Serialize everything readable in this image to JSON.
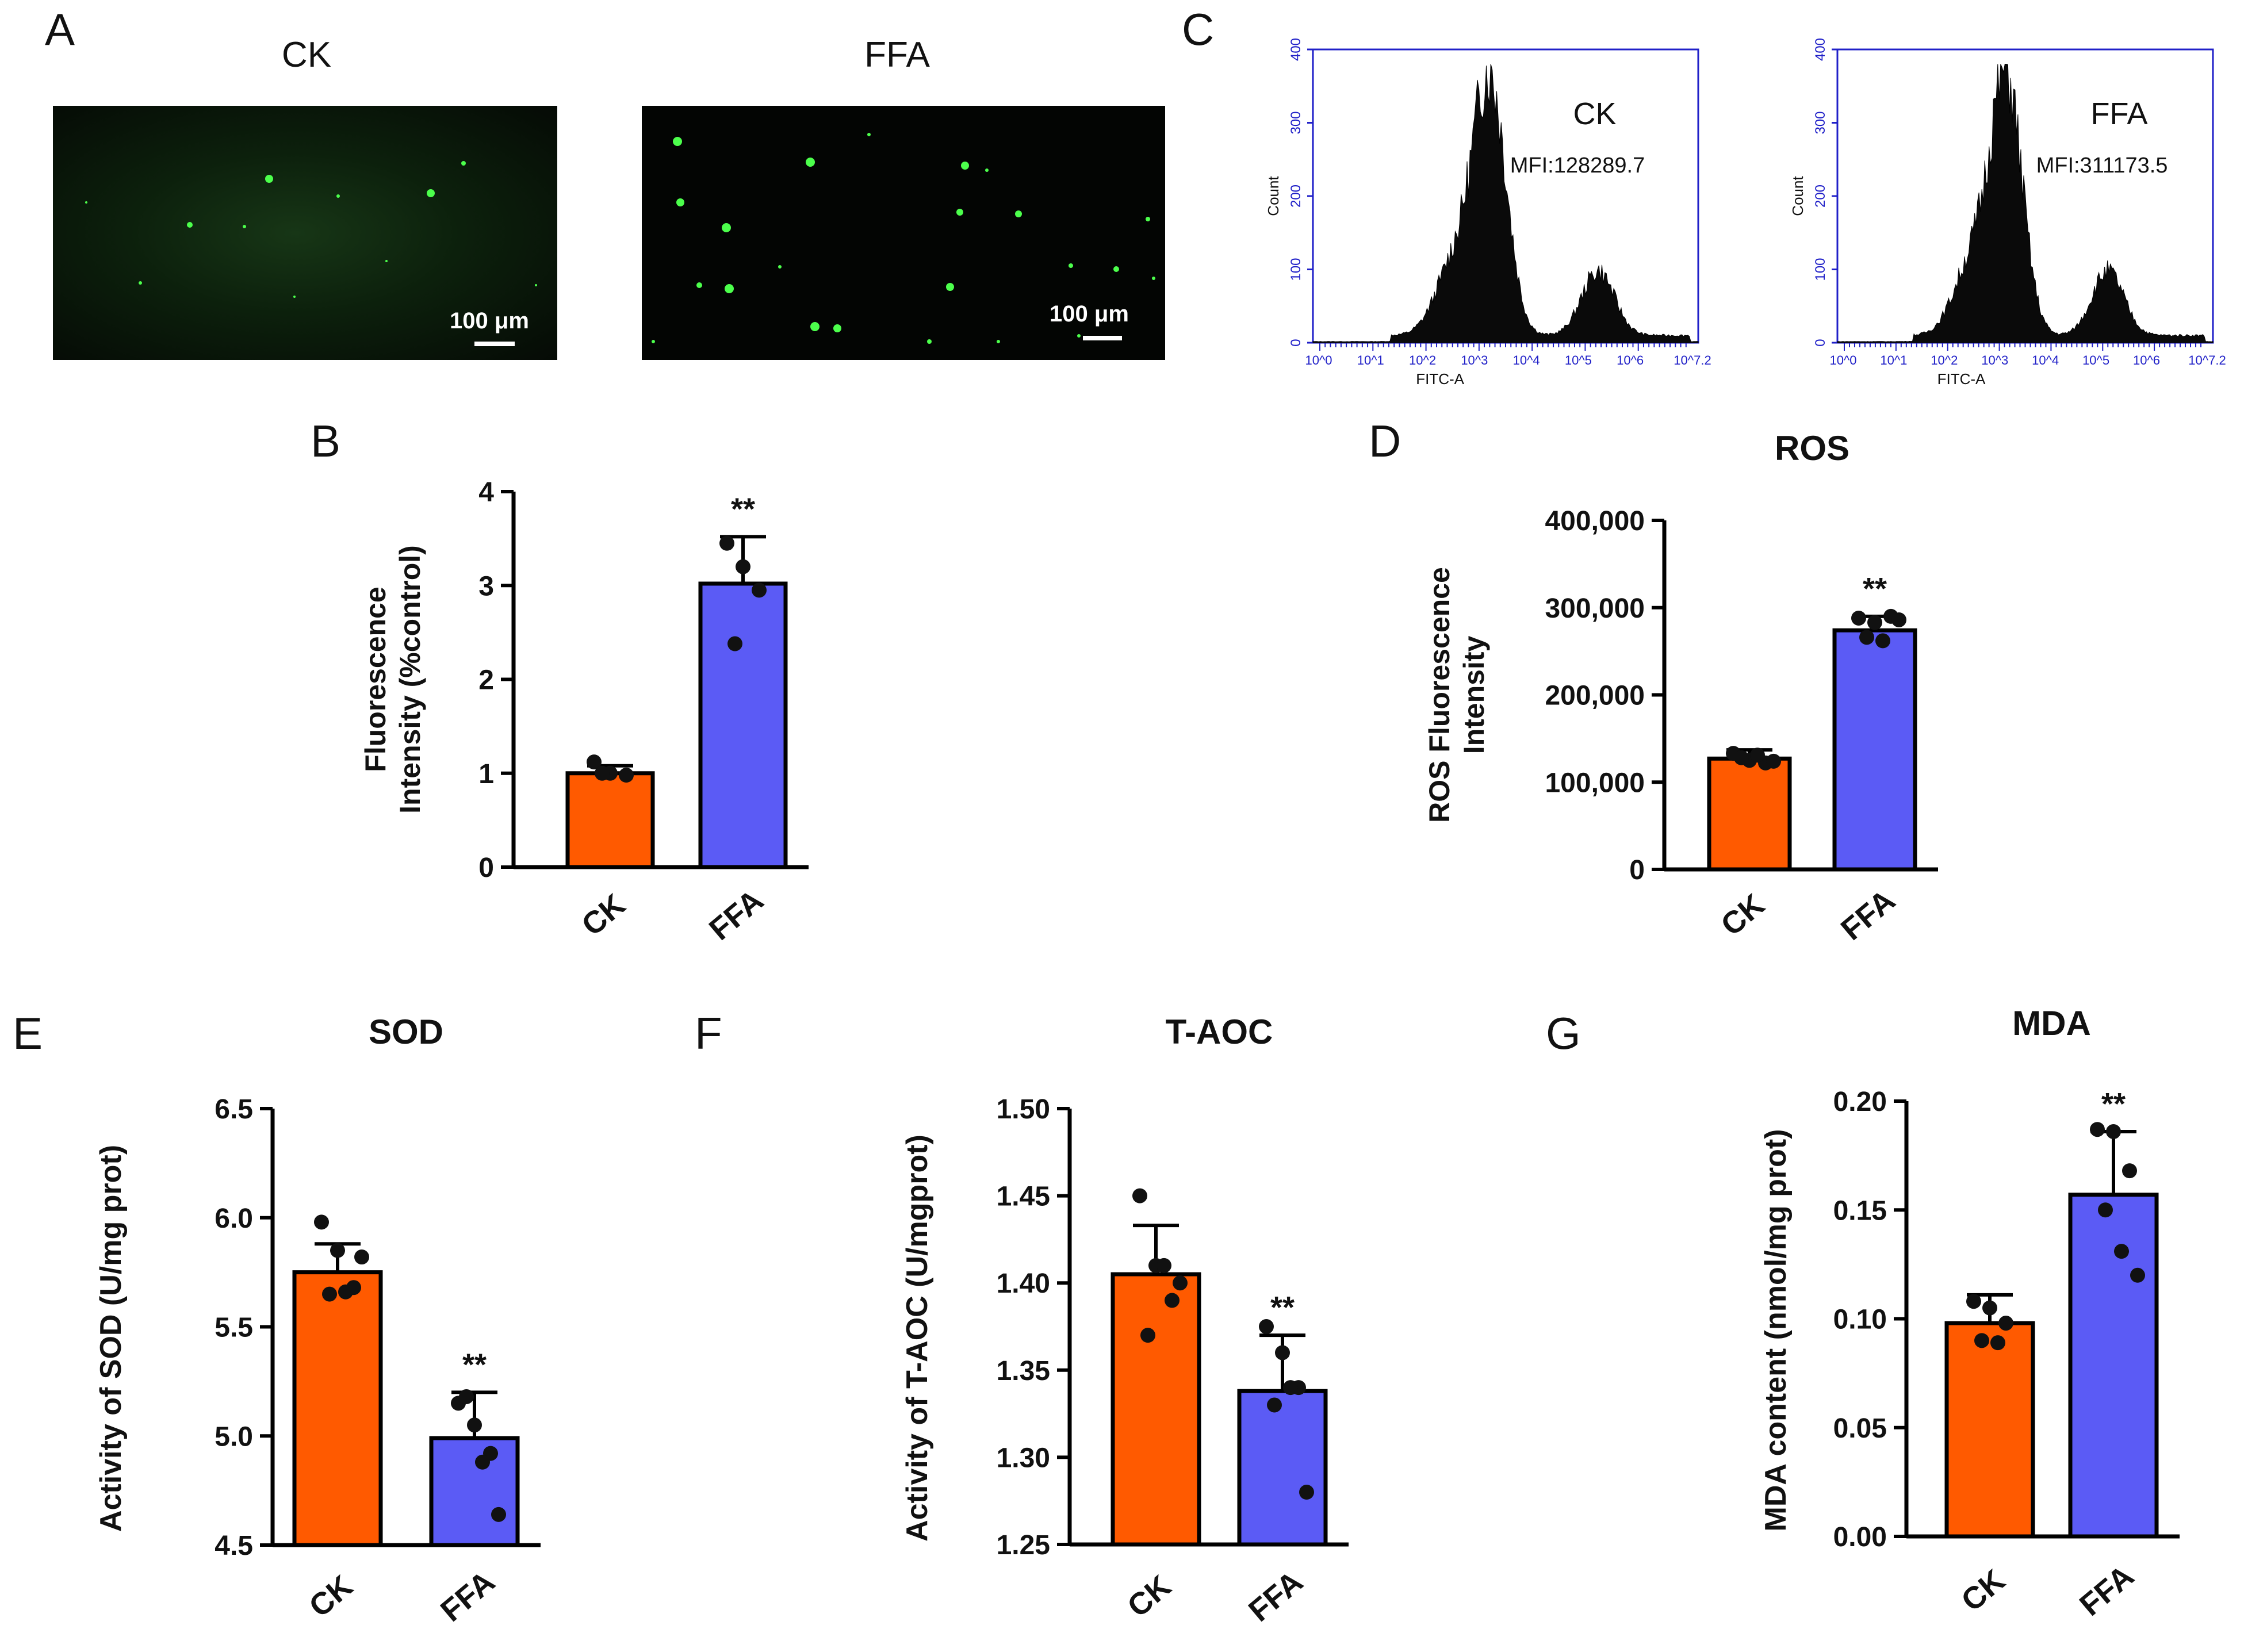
{
  "panels": {
    "A": {
      "letter": "A",
      "ck_title": "CK",
      "ffa_title": "FFA",
      "ck_scale": "100 μm",
      "ffa_scale": "100 μm"
    },
    "C": {
      "letter": "C",
      "hist": [
        {
          "label": "CK",
          "mfi": "MFI:128289.7"
        },
        {
          "label": "FFA",
          "mfi": "MFI:311173.5"
        }
      ],
      "yticks": [
        "0",
        "100",
        "200",
        "300",
        "400"
      ],
      "xticks": [
        "10^0",
        "10^1",
        "10^2",
        "10^3",
        "10^4",
        "10^5",
        "10^6",
        "10^7.2"
      ],
      "ylabel": "Count",
      "xlabel": "FITC-A"
    },
    "B": {
      "letter": "B"
    },
    "D": {
      "letter": "D"
    },
    "E": {
      "letter": "E"
    },
    "F": {
      "letter": "F"
    },
    "G": {
      "letter": "G"
    }
  },
  "colors": {
    "ck": "#ff5a00",
    "ffa": "#5b5bf5",
    "hist_axis": "#2020c8"
  },
  "chart_data": [
    {
      "id": "B",
      "type": "bar",
      "title": "",
      "categories": [
        "CK",
        "FFA"
      ],
      "values": [
        1.0,
        3.02
      ],
      "errors": [
        0.08,
        0.5
      ],
      "points": [
        [
          1.12,
          1.0,
          0.98,
          1.0
        ],
        [
          3.45,
          3.2,
          2.95,
          2.38
        ]
      ],
      "ylabel": "Fluorescence Intensity (%control)",
      "ylim": [
        0,
        4
      ],
      "yticks": [
        "0",
        "1",
        "2",
        "3",
        "4"
      ],
      "ytick_values": [
        0,
        1,
        2,
        3,
        4
      ],
      "signif": "**"
    },
    {
      "id": "D",
      "type": "bar",
      "title": "ROS",
      "categories": [
        "CK",
        "FFA"
      ],
      "values": [
        127000,
        274000
      ],
      "errors": [
        10000,
        16000
      ],
      "points": [
        [
          133000,
          125000,
          122000,
          128000,
          131000,
          124000
        ],
        [
          288000,
          283000,
          290000,
          266000,
          262000,
          286000
        ]
      ],
      "ylabel": "ROS Fluorescence Intensity",
      "ylim": [
        0,
        400000
      ],
      "yticks": [
        "0",
        "100,000",
        "200,000",
        "300,000",
        "400,000"
      ],
      "ytick_values": [
        0,
        100000,
        200000,
        300000,
        400000
      ],
      "signif": "**"
    },
    {
      "id": "E",
      "type": "bar",
      "title": "SOD",
      "categories": [
        "CK",
        "FFA"
      ],
      "values": [
        5.75,
        4.99
      ],
      "errors": [
        0.13,
        0.21
      ],
      "points": [
        [
          5.98,
          5.85,
          5.68,
          5.65,
          5.66,
          5.82
        ],
        [
          5.15,
          5.05,
          4.92,
          5.18,
          4.88,
          4.64
        ]
      ],
      "ylabel": "Activity of SOD (U/mg prot)",
      "ylim": [
        4.5,
        6.5
      ],
      "yticks": [
        "4.5",
        "5.0",
        "5.5",
        "6.0",
        "6.5"
      ],
      "ytick_values": [
        4.5,
        5.0,
        5.5,
        6.0,
        6.5
      ],
      "signif": "**"
    },
    {
      "id": "F",
      "type": "bar",
      "title": "T-AOC",
      "categories": [
        "CK",
        "FFA"
      ],
      "values": [
        1.405,
        1.338
      ],
      "errors": [
        0.028,
        0.032
      ],
      "points": [
        [
          1.45,
          1.41,
          1.39,
          1.37,
          1.41,
          1.4
        ],
        [
          1.375,
          1.36,
          1.34,
          1.33,
          1.34,
          1.28
        ]
      ],
      "ylabel": "Activity of T-AOC (U/mgprot)",
      "ylim": [
        1.25,
        1.5
      ],
      "yticks": [
        "1.25",
        "1.30",
        "1.35",
        "1.40",
        "1.45",
        "1.50"
      ],
      "ytick_values": [
        1.25,
        1.3,
        1.35,
        1.4,
        1.45,
        1.5
      ],
      "signif": "**"
    },
    {
      "id": "G",
      "type": "bar",
      "title": "MDA",
      "categories": [
        "CK",
        "FFA"
      ],
      "values": [
        0.098,
        0.157
      ],
      "errors": [
        0.013,
        0.029
      ],
      "points": [
        [
          0.108,
          0.105,
          0.098,
          0.09,
          0.089
        ],
        [
          0.187,
          0.186,
          0.168,
          0.15,
          0.131,
          0.12
        ]
      ],
      "ylabel": "MDA content (nmol/mg prot)",
      "ylim": [
        0,
        0.2
      ],
      "yticks": [
        "0.00",
        "0.05",
        "0.10",
        "0.15",
        "0.20"
      ],
      "ytick_values": [
        0,
        0.05,
        0.1,
        0.15,
        0.2
      ],
      "signif": "**"
    }
  ]
}
